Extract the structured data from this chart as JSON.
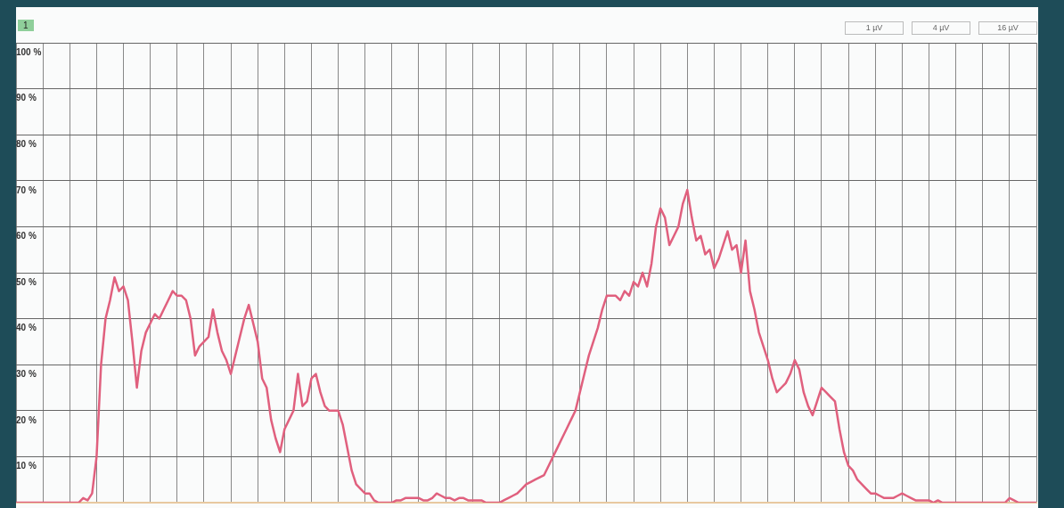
{
  "chart_data": {
    "type": "line",
    "annotations": [
      "1",
      "1 µV",
      "4 µV",
      "16 µV"
    ],
    "categories": [
      null,
      null,
      null,
      null,
      null,
      null,
      null,
      null,
      null,
      null,
      null,
      null,
      null,
      null,
      null,
      null,
      null,
      null,
      null,
      null,
      null,
      null,
      null,
      null,
      null,
      null,
      null,
      null,
      null,
      null,
      null,
      null,
      null,
      null,
      null,
      null,
      null,
      null,
      null,
      null,
      null,
      null,
      null,
      null,
      null,
      null,
      null,
      null,
      null,
      null,
      null,
      null,
      null,
      null,
      null,
      null,
      null,
      null,
      null,
      null,
      null,
      null,
      null,
      null,
      null,
      null,
      null,
      null,
      null,
      null,
      null,
      null,
      null,
      null,
      null,
      null,
      null,
      null,
      null,
      null,
      null,
      null,
      null,
      null,
      null,
      null,
      null,
      null,
      null,
      null,
      null,
      null,
      null,
      null,
      null,
      null,
      null,
      null,
      null,
      null,
      null,
      null,
      null,
      null,
      null,
      null,
      null,
      null,
      null,
      null,
      null,
      null,
      null,
      null,
      null,
      null,
      null,
      null,
      null,
      null,
      null,
      null,
      null,
      null,
      null,
      null,
      null,
      null,
      null,
      null,
      null,
      null,
      null,
      null,
      null,
      null,
      null,
      null,
      null,
      null,
      null,
      null,
      null,
      null,
      null,
      null,
      null,
      null,
      null,
      null,
      null,
      null,
      null,
      null,
      null,
      null,
      null,
      null,
      null,
      null,
      null,
      null,
      null,
      null,
      null,
      null,
      null,
      null,
      null,
      null,
      null,
      null,
      null,
      null,
      null,
      null,
      null,
      null,
      null,
      null,
      null,
      null,
      null,
      null,
      null,
      null,
      null,
      null,
      null,
      null,
      null,
      null,
      null,
      null,
      null,
      null,
      null,
      null,
      null,
      null,
      null,
      null,
      null,
      null,
      null,
      null,
      null,
      null,
      null,
      null,
      null,
      null,
      null,
      null,
      null,
      null,
      null,
      null,
      null,
      null,
      null,
      null,
      null,
      null,
      null,
      null,
      null,
      null,
      null
    ],
    "series": [
      {
        "color": "#e0607e",
        "values": [
          0,
          0,
          0,
          0,
          0,
          0,
          0,
          0,
          0,
          0,
          0,
          0,
          0,
          0,
          0,
          1,
          0.5,
          2,
          10,
          30,
          40,
          44,
          49,
          46,
          47,
          44,
          35,
          25,
          33,
          37,
          39,
          41,
          40,
          42,
          44,
          46,
          45,
          45,
          44,
          40,
          32,
          34,
          35,
          36,
          42,
          37,
          33,
          31,
          28,
          32,
          36,
          40,
          43,
          39,
          35,
          27,
          25,
          18,
          14,
          11,
          16,
          18,
          20,
          28,
          21,
          22,
          27,
          28,
          24,
          21,
          20,
          20,
          20,
          17,
          12,
          7,
          4,
          3,
          2,
          2,
          0.5,
          0,
          0,
          0,
          0,
          0.5,
          0.5,
          1,
          1,
          1,
          1,
          0.5,
          0.5,
          1,
          2,
          1.5,
          1,
          1,
          0.5,
          1,
          1,
          0.5,
          0.5,
          0.5,
          0.5,
          0,
          0,
          0,
          0,
          0.5,
          1,
          1.5,
          2,
          3,
          4,
          4.5,
          5,
          5.5,
          6,
          8,
          10,
          12,
          14,
          16,
          18,
          20,
          24,
          28,
          32,
          35,
          38,
          42,
          45,
          45,
          45,
          44,
          46,
          45,
          48,
          47,
          50,
          47,
          52,
          60,
          64,
          62,
          56,
          58,
          60,
          65,
          68,
          62,
          57,
          58,
          54,
          55,
          51,
          53,
          56,
          59,
          55,
          56,
          50,
          57,
          46,
          42,
          37,
          34,
          31,
          27,
          24,
          25,
          26,
          28,
          31,
          29,
          24,
          21,
          19,
          22,
          25,
          24,
          23,
          22,
          16,
          11,
          8,
          7,
          5,
          4,
          3,
          2,
          2,
          1.5,
          1,
          1,
          1,
          1.5,
          2,
          1.5,
          1,
          0.5,
          0.5,
          0.5,
          0.5,
          0,
          0.5,
          0,
          0,
          0,
          0,
          0,
          0,
          0,
          0,
          0,
          0,
          0,
          0,
          0,
          0,
          0,
          1,
          0.5,
          0,
          0,
          0,
          0,
          0
        ]
      }
    ],
    "ylim": [
      0,
      100
    ],
    "yticks": [
      {
        "value": 0,
        "label": null
      },
      {
        "value": 10,
        "label": "10 %"
      },
      {
        "value": 20,
        "label": "20 %"
      },
      {
        "value": 30,
        "label": "30 %"
      },
      {
        "value": 40,
        "label": "40 %"
      },
      {
        "value": 50,
        "label": "50 %"
      },
      {
        "value": 60,
        "label": "60 %"
      },
      {
        "value": 70,
        "label": "70 %"
      },
      {
        "value": 80,
        "label": "80 %"
      },
      {
        "value": 90,
        "label": "90 %"
      },
      {
        "value": 100,
        "label": "100 %"
      }
    ],
    "tick_labels": "y",
    "grid": true,
    "marker": "none",
    "line_style": "solid",
    "legend": false
  }
}
